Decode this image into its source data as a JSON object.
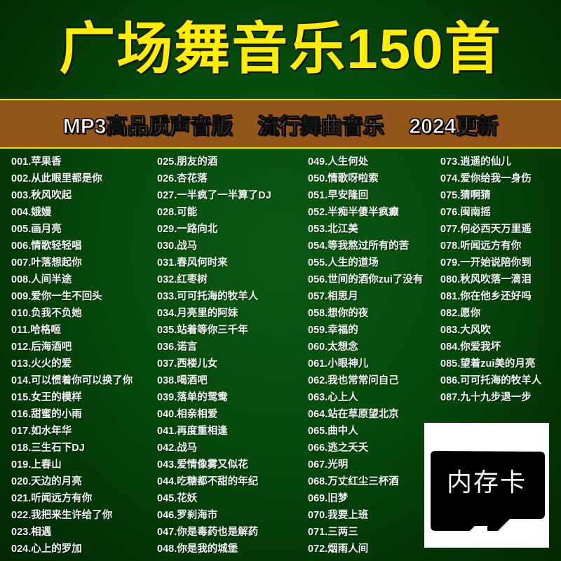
{
  "title": "广场舞音乐150首",
  "banner": [
    "MP3高品质声音版",
    "流行舞曲音乐",
    "2024更新"
  ],
  "colors": {
    "title": "#ffee00",
    "band": "#94551a",
    "background": "#064a0c"
  },
  "card": {
    "icon": "sd-card-icon",
    "label": "内存卡"
  },
  "columns": [
    [
      "001.苹果香",
      "002.从此眼里都是你",
      "003.秋风吹起",
      "004.娥嫚",
      "005.画月亮",
      "006.情歌轻轻唱",
      "007.叶落想起你",
      "008.人间半途",
      "009.爱你一生不回头",
      "010.负我不负她",
      "011.哈格咂",
      "012.后海酒吧",
      "013.火火的爱",
      "014.可以惯着你可以换了你",
      "015.女王的模样",
      "016.甜蜜的小雨",
      "017.如水年华",
      "018.三生石下DJ",
      "019.上春山",
      "020.天边的月亮",
      "021.听闻远方有你",
      "022.我把来生许给了你",
      "023.相遇",
      "024.心上的罗加"
    ],
    [
      "025.朋友的酒",
      "026.杏花落",
      "027.一半疯了一半算了DJ",
      "028.可能",
      "029.一路向北",
      "030.战马",
      "031.春风何时来",
      "032.红枣树",
      "033.可可托海的牧羊人",
      "034.月亮里的阿妹",
      "035.站着等你三千年",
      "036.诺言",
      "037.西楼儿女",
      "038.喝酒吧",
      "039.落单的鸳鸯",
      "040.相亲相爱",
      "041.再度重相逢",
      "042.战马",
      "043.爱情像雾又似花",
      "044.吃糖都不甜的年纪",
      "045.花妖",
      "046.罗刹海市",
      "047.你是毒药也是解药",
      "048.你是我的城堡"
    ],
    [
      "049.人生何处",
      "050.情歌呀啦索",
      "051.早安隆回",
      "052.半痴半傻半疯癫",
      "053.北江美",
      "054.等我熬过所有的苦",
      "055.人生的道场",
      "056.世间的酒你zui了没有",
      "057.相思月",
      "058.想你的夜",
      "059.幸福的",
      "060.太想念",
      "061.小眼神儿",
      "062.我也常常问自己",
      "063.心上人",
      "064.站在草原望北京",
      "065.曲中人",
      "066.逃之夭夭",
      "067.光明",
      "068.万丈红尘三杯酒",
      "069.旧梦",
      "070.我要上班",
      "071.三两三",
      "072.烟雨人间"
    ],
    [
      "073.逍遥的仙儿",
      "074.爱你给我一身伤",
      "075.猜啊猜",
      "076.闽南摇",
      "077.何必西天万里遥",
      "078.听闻远方有你",
      "079.一开始说陪你到",
      "080.秋风吹落一滴泪",
      "081.你在他乡还好吗",
      "082.愿你",
      "083.大风吹",
      "084.你爱我坏",
      "085.望着zui美的月亮",
      "086.可可托海的牧羊人",
      "087.九十九步退一步"
    ]
  ]
}
